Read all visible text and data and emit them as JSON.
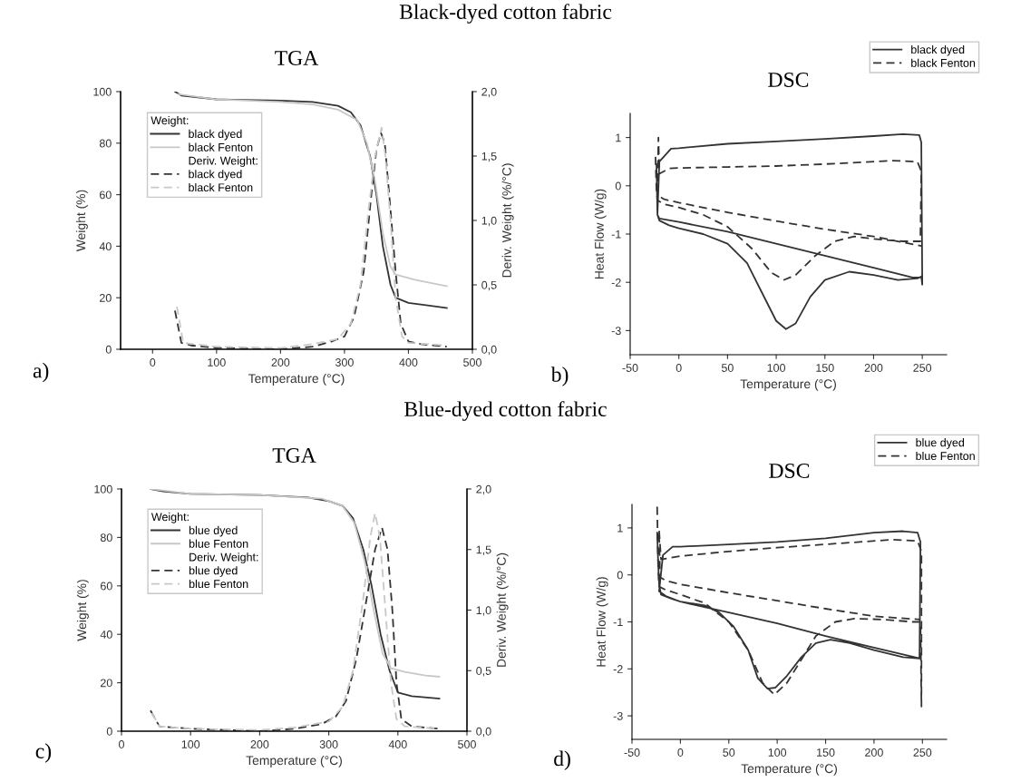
{
  "chart_data": [
    {
      "type": "line",
      "title": "TGA",
      "xlabel": "Temperature (°C)",
      "ylabel": "Weight (%)",
      "y2label": "Deriv. Weight (%/°C)",
      "xlim": [
        -50,
        500
      ],
      "xticks": [
        0,
        100,
        200,
        300,
        400,
        500
      ],
      "ylim": [
        0,
        100
      ],
      "yticks": [
        0,
        20,
        40,
        60,
        80,
        100
      ],
      "y2lim": [
        0,
        2
      ],
      "y2ticks": [
        {
          "value": 0,
          "label": "0,0"
        },
        {
          "value": 0.5,
          "label": "0,5"
        },
        {
          "value": 1,
          "label": "1,0"
        },
        {
          "value": 1.5,
          "label": "1,5"
        },
        {
          "value": 2,
          "label": "2,0"
        }
      ],
      "legend": "top left",
      "legend_title": "Weight:",
      "grid": false,
      "annotations": [
        "Black-dyed cotton fabric",
        "Deriv. Weight:",
        "a)"
      ],
      "series": [
        {
          "name": "black dyed",
          "color": "#333333",
          "line_style": "solid",
          "x": [
            35,
            45,
            100,
            200,
            250,
            290,
            310,
            325,
            340,
            350,
            360,
            372,
            380,
            400,
            430,
            460
          ],
          "values": [
            100,
            98.5,
            97,
            96.5,
            96,
            94.5,
            92,
            87,
            75,
            60,
            40,
            25,
            20,
            18,
            17,
            16
          ]
        },
        {
          "name": "black Fenton",
          "color": "#c8c8c8",
          "line_style": "solid",
          "x": [
            40,
            100,
            200,
            250,
            290,
            320,
            335,
            348,
            360,
            372,
            380,
            410,
            440,
            460
          ],
          "values": [
            99,
            97,
            96,
            95,
            93,
            89,
            80,
            65,
            45,
            32,
            29,
            27,
            25.5,
            24.5
          ]
        },
        {
          "name": "black dyed",
          "color": "#333333",
          "line_style": "dashed",
          "axis": "y2",
          "x": [
            35,
            45,
            60,
            100,
            200,
            250,
            280,
            300,
            315,
            330,
            342,
            350,
            357,
            363,
            370,
            380,
            388,
            400,
            420,
            460
          ],
          "values": [
            0.3,
            0.05,
            0.03,
            0.01,
            0.0,
            0.02,
            0.06,
            0.1,
            0.25,
            0.6,
            1.2,
            1.55,
            1.68,
            1.6,
            1.2,
            0.6,
            0.2,
            0.06,
            0.04,
            0.02
          ]
        },
        {
          "name": "black Fenton",
          "color": "#c8c8c8",
          "line_style": "dashed",
          "axis": "y2",
          "x": [
            38,
            48,
            100,
            200,
            250,
            290,
            310,
            325,
            338,
            348,
            358,
            364,
            372,
            380,
            390,
            400,
            460
          ],
          "values": [
            0.33,
            0.05,
            0.02,
            0.01,
            0.04,
            0.08,
            0.2,
            0.5,
            1.1,
            1.5,
            1.72,
            1.5,
            1.0,
            0.4,
            0.1,
            0.05,
            0.03
          ]
        }
      ]
    },
    {
      "type": "line",
      "title": "DSC",
      "xlabel": "Temperature (°C)",
      "ylabel": "Heat Flow (W/g)",
      "xlim": [
        -50,
        275
      ],
      "xticks": [
        -50,
        0,
        50,
        100,
        150,
        200,
        250
      ],
      "ylim": [
        -3.5,
        1.5
      ],
      "yticks": [
        -3,
        -2,
        -1,
        0,
        1
      ],
      "legend": "top right",
      "grid": false,
      "annotations": [
        "b)"
      ],
      "series": [
        {
          "name": "black dyed",
          "color": "#333333",
          "line_style": "solid",
          "x": [
            -23,
            -22,
            -20,
            -10,
            0,
            25,
            50,
            70,
            90,
            100,
            110,
            120,
            135,
            150,
            175,
            200,
            225,
            245,
            249,
            250,
            249,
            247,
            230,
            200,
            150,
            100,
            50,
            0,
            -8,
            -20,
            -22,
            -20,
            0,
            50,
            100,
            150,
            200,
            240,
            250
          ],
          "values": [
            0.45,
            -0.6,
            -0.72,
            -0.82,
            -0.88,
            -1.0,
            -1.2,
            -1.6,
            -2.4,
            -2.8,
            -2.97,
            -2.85,
            -2.3,
            -1.95,
            -1.78,
            -1.85,
            -1.95,
            -1.92,
            -1.88,
            -2.05,
            0.9,
            1.05,
            1.07,
            1.03,
            0.97,
            0.92,
            0.87,
            0.78,
            0.77,
            0.5,
            -0.6,
            -0.68,
            -0.75,
            -0.95,
            -1.2,
            -1.45,
            -1.7,
            -1.9,
            -1.9
          ]
        },
        {
          "name": "black Fenton",
          "color": "#333333",
          "line_style": "dashed",
          "x": [
            -24,
            -23,
            -22,
            -15,
            0,
            25,
            50,
            75,
            95,
            108,
            120,
            140,
            160,
            180,
            200,
            230,
            248,
            249,
            245,
            220,
            150,
            100,
            50,
            0,
            -10,
            -20,
            -21,
            -22,
            -15,
            0,
            50,
            100,
            150,
            200,
            250
          ],
          "values": [
            0.6,
            -0.1,
            -0.3,
            -0.38,
            -0.45,
            -0.6,
            -0.85,
            -1.3,
            -1.8,
            -1.95,
            -1.85,
            -1.45,
            -1.15,
            -1.05,
            -1.1,
            -1.15,
            -1.15,
            0.3,
            0.5,
            0.52,
            0.45,
            0.41,
            0.39,
            0.37,
            0.36,
            0.25,
            1.0,
            -0.2,
            -0.28,
            -0.35,
            -0.55,
            -0.73,
            -0.9,
            -1.05,
            -1.25
          ]
        }
      ]
    },
    {
      "type": "line",
      "title": "TGA",
      "xlabel": "Temperature (°C)",
      "ylabel": "Weight (%)",
      "y2label": "Deriv. Weight (%/°C)",
      "xlim": [
        0,
        500
      ],
      "xticks": [
        0,
        100,
        200,
        300,
        400,
        500
      ],
      "ylim": [
        0,
        100
      ],
      "yticks": [
        0,
        20,
        40,
        60,
        80,
        100
      ],
      "y2lim": [
        0,
        2
      ],
      "y2ticks": [
        {
          "value": 0,
          "label": "0,0"
        },
        {
          "value": 0.5,
          "label": "0,5"
        },
        {
          "value": 1,
          "label": "1,0"
        },
        {
          "value": 1.5,
          "label": "1,5"
        },
        {
          "value": 2,
          "label": "2,0"
        }
      ],
      "legend": "top left",
      "legend_title": "Weight:",
      "grid": false,
      "annotations": [
        "Blue-dyed cotton fabric",
        "Deriv. Weight:",
        "c)"
      ],
      "series": [
        {
          "name": "blue dyed",
          "color": "#333333",
          "line_style": "solid",
          "x": [
            42,
            60,
            100,
            200,
            270,
            300,
            320,
            335,
            350,
            362,
            375,
            388,
            400,
            420,
            460
          ],
          "values": [
            100,
            99,
            98,
            97.5,
            96.5,
            95,
            93,
            88,
            75,
            60,
            40,
            25,
            16,
            14.5,
            13.5
          ]
        },
        {
          "name": "blue Fenton",
          "color": "#c8c8c8",
          "line_style": "solid",
          "x": [
            42,
            100,
            200,
            290,
            320,
            337,
            352,
            365,
            378,
            390,
            410,
            440,
            460
          ],
          "values": [
            100,
            98,
            97.5,
            96,
            93,
            86,
            70,
            50,
            32,
            26,
            24.5,
            23,
            22.5
          ]
        },
        {
          "name": "blue dyed",
          "color": "#333333",
          "line_style": "dashed",
          "axis": "y2",
          "x": [
            42,
            55,
            100,
            200,
            250,
            290,
            310,
            325,
            340,
            355,
            367,
            377,
            385,
            392,
            398,
            405,
            420,
            460
          ],
          "values": [
            0.17,
            0.04,
            0.02,
            0.0,
            0.02,
            0.06,
            0.12,
            0.25,
            0.6,
            1.1,
            1.5,
            1.68,
            1.5,
            1.0,
            0.4,
            0.1,
            0.04,
            0.02
          ]
        },
        {
          "name": "blue Fenton",
          "color": "#c8c8c8",
          "line_style": "dashed",
          "axis": "y2",
          "x": [
            44,
            55,
            100,
            200,
            250,
            300,
            320,
            335,
            350,
            360,
            367,
            374,
            382,
            390,
            398,
            410,
            460
          ],
          "values": [
            0.15,
            0.04,
            0.02,
            0.01,
            0.03,
            0.08,
            0.2,
            0.5,
            1.1,
            1.6,
            1.8,
            1.6,
            1.0,
            0.4,
            0.1,
            0.04,
            0.02
          ]
        }
      ]
    },
    {
      "type": "line",
      "title": "DSC",
      "xlabel": "Temperature (°C)",
      "ylabel": "Heat Flow (W/g)",
      "xlim": [
        -50,
        275
      ],
      "xticks": [
        -50,
        0,
        50,
        100,
        150,
        200,
        250
      ],
      "ylim": [
        -3.5,
        1.5
      ],
      "yticks": [
        -3,
        -2,
        -1,
        0,
        1
      ],
      "legend": "top right",
      "grid": false,
      "annotations": [
        "d)"
      ],
      "series": [
        {
          "name": "blue dyed",
          "color": "#333333",
          "line_style": "solid",
          "x": [
            -24,
            -23,
            -22,
            -20,
            -10,
            0,
            25,
            40,
            55,
            70,
            80,
            90,
            98,
            110,
            125,
            140,
            155,
            175,
            200,
            230,
            247,
            248,
            245,
            230,
            200,
            150,
            100,
            50,
            0,
            -8,
            -18,
            -22,
            -15,
            0,
            50,
            100,
            150,
            200,
            248
          ],
          "values": [
            0.9,
            0.3,
            -0.2,
            -0.42,
            -0.5,
            -0.57,
            -0.65,
            -0.8,
            -1.1,
            -1.6,
            -2.2,
            -2.42,
            -2.4,
            -2.15,
            -1.75,
            -1.45,
            -1.38,
            -1.45,
            -1.6,
            -1.75,
            -1.78,
            0.7,
            0.9,
            0.93,
            0.9,
            0.78,
            0.7,
            0.65,
            0.6,
            0.6,
            0.42,
            -0.35,
            -0.45,
            -0.57,
            -0.8,
            -1.03,
            -1.3,
            -1.55,
            -1.78
          ]
        },
        {
          "name": "blue Fenton",
          "color": "#333333",
          "line_style": "dashed",
          "x": [
            -24,
            -23,
            -22,
            -15,
            0,
            25,
            50,
            70,
            85,
            97,
            110,
            125,
            140,
            160,
            180,
            210,
            240,
            248,
            249,
            249,
            245,
            220,
            150,
            100,
            50,
            0,
            -20,
            -22,
            -21,
            -15,
            0,
            50,
            100,
            150,
            200,
            248
          ],
          "values": [
            1.45,
            0.2,
            -0.25,
            -0.32,
            -0.42,
            -0.6,
            -1.0,
            -1.6,
            -2.3,
            -2.55,
            -2.3,
            -1.8,
            -1.3,
            -1.0,
            -0.93,
            -0.95,
            -1.0,
            -1.0,
            -2.8,
            0.5,
            0.72,
            0.75,
            0.65,
            0.58,
            0.5,
            0.4,
            0.33,
            0.95,
            -0.05,
            -0.12,
            -0.2,
            -0.38,
            -0.55,
            -0.72,
            -0.88,
            -0.95
          ]
        }
      ]
    }
  ]
}
